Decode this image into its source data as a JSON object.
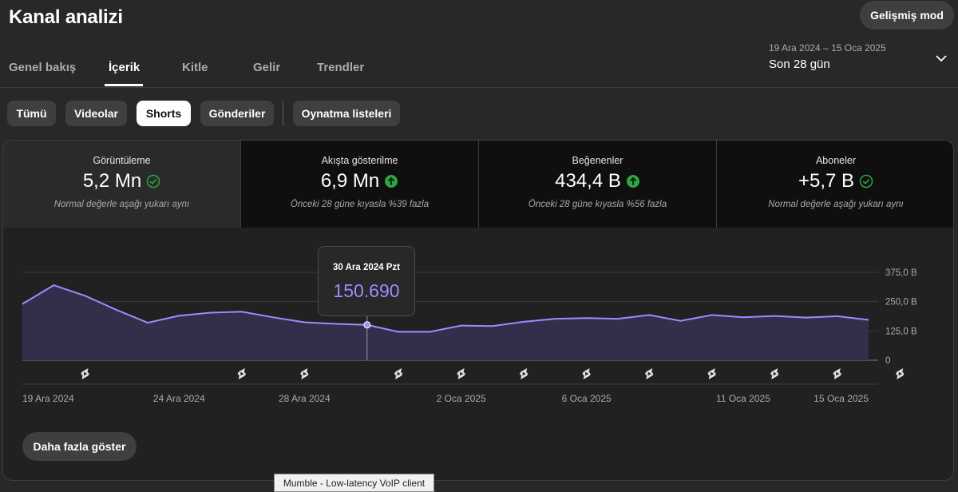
{
  "header": {
    "title": "Kanal analizi",
    "advanced_mode": "Gelişmiş mod",
    "tabs": [
      "Genel bakış",
      "İçerik",
      "Kitle",
      "Gelir",
      "Trendler"
    ],
    "active_tab": "İçerik",
    "date_range": "19 Ara 2024 – 15 Oca 2025",
    "period": "Son 28 gün"
  },
  "filters": {
    "chips": [
      "Tümü",
      "Videolar",
      "Shorts",
      "Gönderiler",
      "Oynatma listeleri"
    ],
    "active": "Shorts"
  },
  "metrics": [
    {
      "label": "Görüntüleme",
      "value": "5,2 Mn",
      "status": "check",
      "sub": "Normal değerle aşağı yukarı aynı"
    },
    {
      "label": "Akışta gösterilme",
      "value": "6,9 Mn",
      "status": "up",
      "sub": "Önceki 28 güne kıyasla %39 fazla"
    },
    {
      "label": "Beğenenler",
      "value": "434,4 B",
      "status": "up",
      "sub": "Önceki 28 güne kıyasla %56 fazla"
    },
    {
      "label": "Aboneler",
      "value": "+5,7 B",
      "status": "check",
      "sub": "Normal değerle aşağı yukarı aynı"
    }
  ],
  "colors": {
    "accent": "#9b8cff",
    "positive": "#2ba640",
    "chart_fill": "#332f4a"
  },
  "chart_data": {
    "type": "area",
    "title": "",
    "series": [
      {
        "name": "",
        "values": [
          240000,
          320000,
          275000,
          215000,
          160000,
          190000,
          203000,
          207000,
          183000,
          162000,
          155000,
          150690,
          121000,
          121000,
          148000,
          146000,
          164000,
          177000,
          180000,
          177000,
          193000,
          168000,
          193000,
          183000,
          189000,
          182000,
          188000,
          172000
        ]
      }
    ],
    "x_labels": [
      "19 Ara 2024",
      "24 Ara 2024",
      "28 Ara 2024",
      "2 Oca 2025",
      "6 Oca 2025",
      "11 Oca 2025",
      "15 Oca 2025"
    ],
    "x_label_day_index": [
      0,
      5,
      9,
      14,
      18,
      23,
      27
    ],
    "y_ticks": [
      "375,0 B",
      "250,0 B",
      "125,0 B",
      "0"
    ],
    "y_tick_values": [
      375000,
      250000,
      125000,
      0
    ],
    "ylim": [
      0,
      375000
    ],
    "upload_day_index": [
      2,
      7,
      9,
      12,
      14,
      16,
      18,
      20,
      22,
      24,
      26,
      28
    ],
    "grid": true,
    "tooltip": {
      "date": "30 Ara 2024 Pzt",
      "value": "150.690",
      "day_index": 11
    }
  },
  "more_button": "Daha fazla göster",
  "system_tooltip": "Mumble - Low-latency VoIP client"
}
